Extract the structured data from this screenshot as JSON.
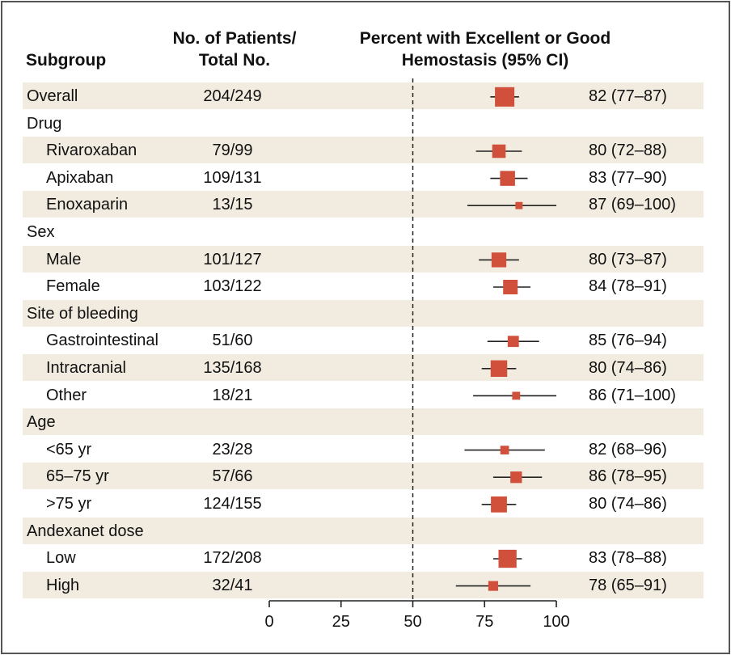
{
  "headers": {
    "subgroup": "Subgroup",
    "patients_line1": "No. of Patients/",
    "patients_line2": "Total No.",
    "percent_line1": "Percent with Excellent or Good",
    "percent_line2": "Hemostasis (95% CI)"
  },
  "colors": {
    "marker": "#d0503c",
    "shade": "#f2ece0",
    "line": "#222222"
  },
  "chart_data": {
    "type": "forest",
    "xlim": [
      0,
      100
    ],
    "xticks": [
      "0",
      "25",
      "50",
      "75",
      "100"
    ],
    "xtick_values": [
      0,
      25,
      50,
      75,
      100
    ],
    "reference_line": 50,
    "rows": [
      {
        "label": "Overall",
        "level": "group",
        "shaded": true,
        "count": "204/249",
        "n": 249,
        "estimate": 82,
        "lo": 77,
        "hi": 87,
        "ci_text": "82 (77–87)"
      },
      {
        "label": "Drug",
        "level": "group",
        "shaded": false
      },
      {
        "label": "Rivaroxaban",
        "level": "sub",
        "shaded": true,
        "count": "79/99",
        "n": 99,
        "estimate": 80,
        "lo": 72,
        "hi": 88,
        "ci_text": "80 (72–88)"
      },
      {
        "label": "Apixaban",
        "level": "sub",
        "shaded": false,
        "count": "109/131",
        "n": 131,
        "estimate": 83,
        "lo": 77,
        "hi": 90,
        "ci_text": "83 (77–90)"
      },
      {
        "label": "Enoxaparin",
        "level": "sub",
        "shaded": true,
        "count": "13/15",
        "n": 15,
        "estimate": 87,
        "lo": 69,
        "hi": 100,
        "ci_text": "87 (69–100)"
      },
      {
        "label": "Sex",
        "level": "group",
        "shaded": false
      },
      {
        "label": "Male",
        "level": "sub",
        "shaded": true,
        "count": "101/127",
        "n": 127,
        "estimate": 80,
        "lo": 73,
        "hi": 87,
        "ci_text": "80 (73–87)"
      },
      {
        "label": "Female",
        "level": "sub",
        "shaded": false,
        "count": "103/122",
        "n": 122,
        "estimate": 84,
        "lo": 78,
        "hi": 91,
        "ci_text": "84 (78–91)"
      },
      {
        "label": "Site of bleeding",
        "level": "group",
        "shaded": true
      },
      {
        "label": "Gastrointestinal",
        "level": "sub",
        "shaded": false,
        "count": "51/60",
        "n": 60,
        "estimate": 85,
        "lo": 76,
        "hi": 94,
        "ci_text": "85 (76–94)"
      },
      {
        "label": "Intracranial",
        "level": "sub",
        "shaded": true,
        "count": "135/168",
        "n": 168,
        "estimate": 80,
        "lo": 74,
        "hi": 86,
        "ci_text": "80 (74–86)"
      },
      {
        "label": "Other",
        "level": "sub",
        "shaded": false,
        "count": "18/21",
        "n": 21,
        "estimate": 86,
        "lo": 71,
        "hi": 100,
        "ci_text": "86 (71–100)"
      },
      {
        "label": "Age",
        "level": "group",
        "shaded": true
      },
      {
        "label": "<65 yr",
        "level": "sub",
        "shaded": false,
        "count": "23/28",
        "n": 28,
        "estimate": 82,
        "lo": 68,
        "hi": 96,
        "ci_text": "82 (68–96)"
      },
      {
        "label": "65–75 yr",
        "level": "sub",
        "shaded": true,
        "count": "57/66",
        "n": 66,
        "estimate": 86,
        "lo": 78,
        "hi": 95,
        "ci_text": "86 (78–95)"
      },
      {
        "label": ">75 yr",
        "level": "sub",
        "shaded": false,
        "count": "124/155",
        "n": 155,
        "estimate": 80,
        "lo": 74,
        "hi": 86,
        "ci_text": "80 (74–86)"
      },
      {
        "label": "Andexanet dose",
        "level": "group",
        "shaded": true
      },
      {
        "label": "Low",
        "level": "sub",
        "shaded": false,
        "count": "172/208",
        "n": 208,
        "estimate": 83,
        "lo": 78,
        "hi": 88,
        "ci_text": "83 (78–88)"
      },
      {
        "label": "High",
        "level": "sub",
        "shaded": true,
        "count": "32/41",
        "n": 41,
        "estimate": 78,
        "lo": 65,
        "hi": 91,
        "ci_text": "78 (65–91)"
      }
    ]
  }
}
